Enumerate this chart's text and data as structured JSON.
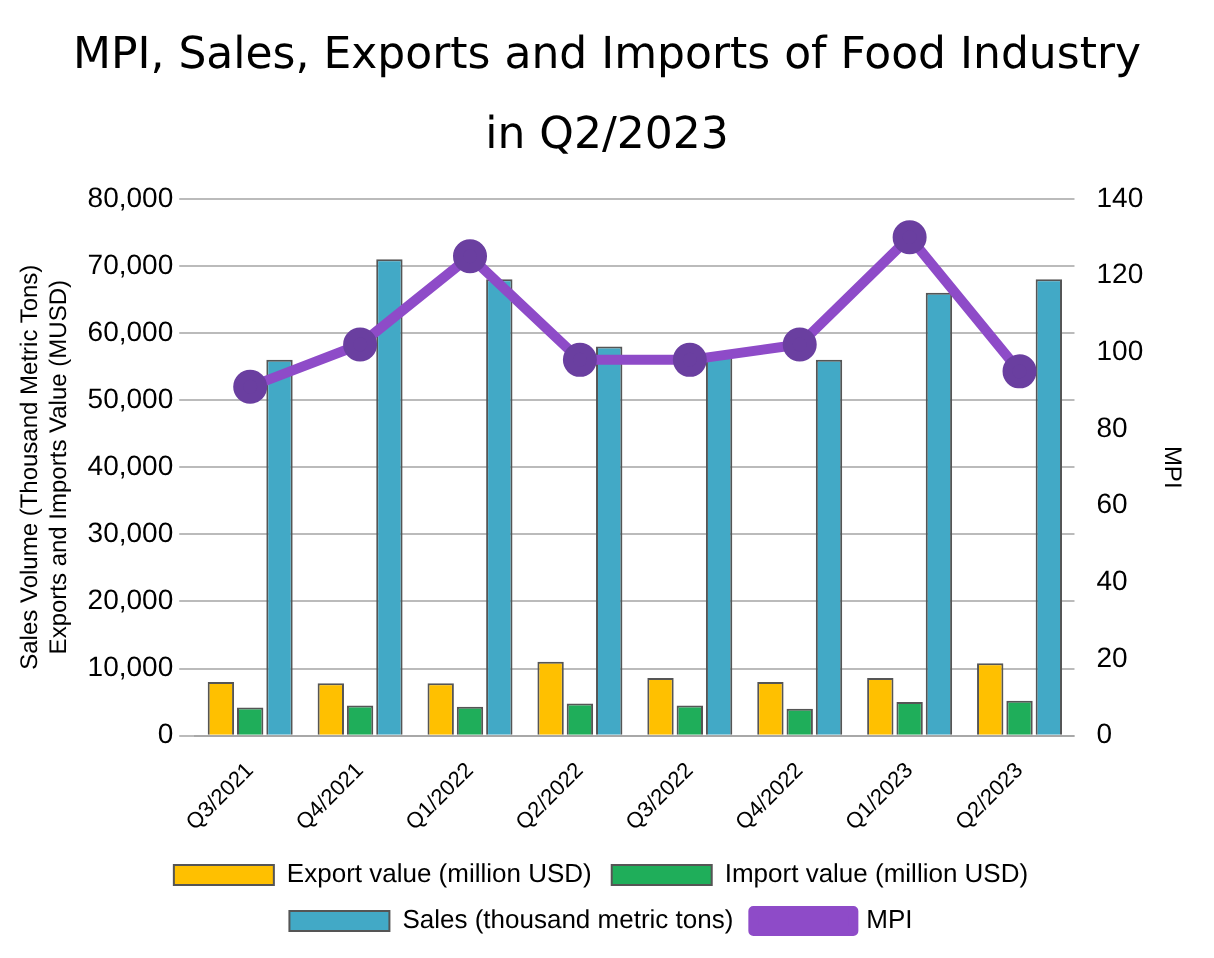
{
  "chart_data": {
    "type": "bar",
    "title": "MPI, Sales, Exports and Imports of Food Industry in Q2/2023",
    "ylabel": "Sales Volume (Thousand Metric Tons) Exports and Imports Value (MUSD)",
    "y2label": "MPI",
    "categories": [
      "Q3/2021",
      "Q4/2021",
      "Q1/2022",
      "Q2/2022",
      "Q3/2022",
      "Q4/2022",
      "Q1/2023",
      "Q2/2023"
    ],
    "series": [
      {
        "name": "Export value (million USD)",
        "color": "#ffc000",
        "values": [
          8000,
          7800,
          7800,
          11000,
          8600,
          8000,
          8600,
          10800
        ]
      },
      {
        "name": "Import value (million USD)",
        "color": "#1fae5a",
        "values": [
          4200,
          4500,
          4300,
          4800,
          4500,
          4000,
          5000,
          5200
        ]
      },
      {
        "name": "Sales (thousand metric tons)",
        "color": "#42a9c6",
        "values": [
          56000,
          71000,
          68000,
          58000,
          57000,
          56000,
          66000,
          68000
        ]
      },
      {
        "name": "MPI",
        "type": "line",
        "axis": "y2",
        "color": "#8e4bc8",
        "values": [
          91,
          102,
          125,
          98,
          98,
          102,
          130,
          95
        ]
      }
    ],
    "ylim": [
      0,
      80000
    ],
    "yticks": [
      0,
      {
        "value": 10000,
        "label": "10,000"
      },
      {
        "value": 20000,
        "label": "20,000"
      },
      {
        "value": 30000,
        "label": "30,000"
      },
      {
        "value": 40000,
        "label": "40,000"
      },
      {
        "value": 50000,
        "label": "50,000"
      },
      {
        "value": 60000,
        "label": "60,000"
      },
      {
        "value": 70000,
        "label": "70,000"
      },
      {
        "value": 80000,
        "label": "80,000"
      }
    ],
    "y2lim": [
      0,
      140
    ],
    "y2ticks": [
      0,
      20,
      40,
      60,
      80,
      100,
      120,
      140
    ],
    "grid": "y",
    "legend": "bottom",
    "marker": "circle"
  }
}
